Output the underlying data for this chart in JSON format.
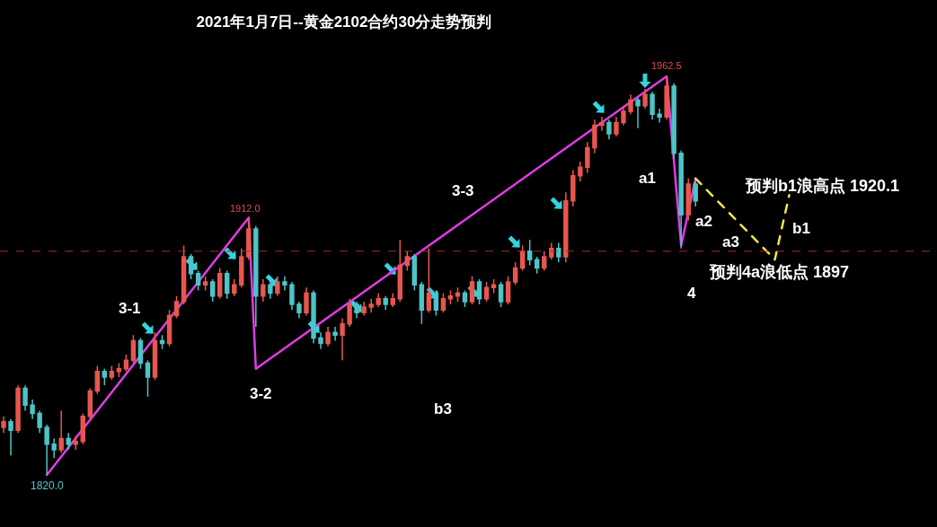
{
  "chart_data": {
    "type": "candlestick",
    "title": "2021年1月7日--黄金2102合约30分走势预判",
    "categories": [
      null,
      null,
      null,
      null,
      null,
      null,
      null,
      null,
      null,
      null,
      null,
      null,
      null,
      null,
      null,
      null,
      null,
      null,
      null,
      null,
      null,
      null,
      null,
      null,
      null,
      null,
      null,
      null,
      null,
      null,
      null,
      null,
      null,
      null,
      null,
      null,
      null,
      null,
      null,
      null,
      null,
      null,
      null,
      null,
      null,
      null,
      null,
      null,
      null,
      null,
      null,
      null,
      null,
      null,
      null,
      null,
      null,
      null,
      null,
      null,
      null,
      null,
      null,
      null,
      null,
      null,
      null,
      null,
      null,
      null,
      null,
      null,
      null,
      null,
      null,
      null,
      null,
      null,
      null,
      null,
      null,
      null,
      null,
      null,
      null,
      null,
      null,
      null,
      null,
      null,
      null,
      null,
      null,
      null,
      null,
      null,
      null,
      null,
      null,
      null,
      null,
      null,
      null,
      null,
      null,
      null,
      null,
      null,
      null,
      null,
      null,
      null,
      null,
      null,
      null,
      null,
      null,
      null,
      null,
      null,
      null,
      null,
      null,
      null,
      null,
      null,
      null,
      null,
      null,
      null
    ],
    "ohlc": [
      [
        1837,
        1841,
        1835,
        1839
      ],
      [
        1839,
        1840,
        1827,
        1836
      ],
      [
        1836,
        1852,
        1835,
        1851
      ],
      [
        1851,
        1852,
        1843,
        1845
      ],
      [
        1845,
        1847,
        1840,
        1842
      ],
      [
        1842,
        1843,
        1835,
        1837
      ],
      [
        1837,
        1838,
        1820.0,
        1831
      ],
      [
        1831,
        1833,
        1826,
        1829
      ],
      [
        1829,
        1843,
        1828,
        1833
      ],
      [
        1833,
        1835,
        1829,
        1831
      ],
      [
        1831,
        1834,
        1829,
        1832
      ],
      [
        1832,
        1842,
        1831,
        1841
      ],
      [
        1841,
        1851,
        1840,
        1850
      ],
      [
        1850,
        1859,
        1849,
        1857
      ],
      [
        1857,
        1858,
        1852,
        1855
      ],
      [
        1855,
        1859,
        1854,
        1857
      ],
      [
        1857,
        1860,
        1855,
        1858
      ],
      [
        1858,
        1863,
        1857,
        1861
      ],
      [
        1861,
        1870,
        1860,
        1868
      ],
      [
        1868,
        1869,
        1858,
        1860
      ],
      [
        1860,
        1861,
        1848,
        1855
      ],
      [
        1855,
        1871,
        1854,
        1868
      ],
      [
        1868,
        1870,
        1865,
        1867
      ],
      [
        1867,
        1879,
        1866,
        1877
      ],
      [
        1877,
        1884,
        1876,
        1882
      ],
      [
        1882,
        1902,
        1881,
        1898
      ],
      [
        1898,
        1899,
        1890,
        1892
      ],
      [
        1892,
        1893,
        1886,
        1888
      ],
      [
        1888,
        1891,
        1886,
        1889
      ],
      [
        1889,
        1890,
        1882,
        1884
      ],
      [
        1884,
        1894,
        1883,
        1892
      ],
      [
        1892,
        1893,
        1883,
        1885
      ],
      [
        1885,
        1890,
        1884,
        1888
      ],
      [
        1888,
        1901,
        1887,
        1898
      ],
      [
        1898,
        1912.0,
        1897,
        1908
      ],
      [
        1908,
        1909,
        1873,
        1884
      ],
      [
        1884,
        1890,
        1882,
        1888
      ],
      [
        1888,
        1889,
        1883,
        1885
      ],
      [
        1885,
        1891,
        1884,
        1889
      ],
      [
        1889,
        1891,
        1886,
        1888
      ],
      [
        1888,
        1889,
        1879,
        1881
      ],
      [
        1881,
        1882,
        1876,
        1878
      ],
      [
        1878,
        1887,
        1877,
        1885
      ],
      [
        1885,
        1886,
        1867,
        1869
      ],
      [
        1869,
        1871,
        1865,
        1867
      ],
      [
        1867,
        1873,
        1866,
        1871
      ],
      [
        1871,
        1873,
        1868,
        1870
      ],
      [
        1870,
        1876,
        1861,
        1874
      ],
      [
        1874,
        1883,
        1873,
        1881
      ],
      [
        1881,
        1882,
        1876,
        1878
      ],
      [
        1878,
        1882,
        1877,
        1880
      ],
      [
        1880,
        1883,
        1878,
        1881
      ],
      [
        1881,
        1885,
        1880,
        1883
      ],
      [
        1883,
        1884,
        1879,
        1881
      ],
      [
        1881,
        1885,
        1880,
        1883
      ],
      [
        1883,
        1904,
        1882,
        1895
      ],
      [
        1895,
        1900,
        1893,
        1898
      ],
      [
        1898,
        1899,
        1886,
        1888
      ],
      [
        1888,
        1889,
        1874,
        1879
      ],
      [
        1879,
        1901,
        1878,
        1885
      ],
      [
        1885,
        1886,
        1877,
        1879
      ],
      [
        1879,
        1885,
        1878,
        1883
      ],
      [
        1883,
        1886,
        1881,
        1884
      ],
      [
        1884,
        1887,
        1882,
        1885
      ],
      [
        1885,
        1886,
        1880,
        1882
      ],
      [
        1882,
        1891,
        1881,
        1889
      ],
      [
        1889,
        1890,
        1881,
        1883
      ],
      [
        1883,
        1889,
        1882,
        1887
      ],
      [
        1887,
        1890,
        1885,
        1888
      ],
      [
        1888,
        1889,
        1880,
        1882
      ],
      [
        1882,
        1891,
        1881,
        1889
      ],
      [
        1889,
        1896,
        1888,
        1894
      ],
      [
        1894,
        1902,
        1893,
        1900
      ],
      [
        1900,
        1904,
        1895,
        1897
      ],
      [
        1897,
        1898,
        1892,
        1894
      ],
      [
        1894,
        1900,
        1893,
        1898
      ],
      [
        1898,
        1903,
        1897,
        1901
      ],
      [
        1901,
        1903,
        1896,
        1898
      ],
      [
        1898,
        1921,
        1896,
        1918
      ],
      [
        1918,
        1929,
        1916,
        1927
      ],
      [
        1927,
        1932,
        1925,
        1930
      ],
      [
        1930,
        1939,
        1928,
        1937
      ],
      [
        1937,
        1947,
        1935,
        1945
      ],
      [
        1945,
        1948,
        1943,
        1946
      ],
      [
        1946,
        1947,
        1940,
        1942
      ],
      [
        1942,
        1948,
        1941,
        1946
      ],
      [
        1946,
        1952,
        1945,
        1950
      ],
      [
        1950,
        1956,
        1949,
        1954
      ],
      [
        1954,
        1955,
        1944,
        1952
      ],
      [
        1952,
        1958,
        1951,
        1956
      ],
      [
        1956,
        1957,
        1947,
        1949
      ],
      [
        1949,
        1951,
        1946,
        1948
      ],
      [
        1948,
        1962.5,
        1947,
        1959
      ],
      [
        1959,
        1960,
        1933,
        1935
      ],
      [
        1935,
        1936,
        1901,
        1913
      ],
      [
        1913,
        1926,
        1911,
        1924
      ],
      [
        1924,
        1925,
        1916,
        1918
      ],
      null,
      null,
      null,
      null,
      null,
      null,
      null,
      null,
      null,
      null,
      null,
      null,
      null,
      null,
      null,
      null,
      null,
      null,
      null,
      null,
      null,
      null,
      null,
      null,
      null,
      null,
      null,
      null,
      null,
      null,
      null,
      null,
      null
    ],
    "colors": [
      "#e8574f",
      "#4cc4c8",
      "#e8574f",
      "#4cc4c8",
      "#4cc4c8",
      "#4cc4c8",
      "#4cc4c8",
      "#4cc4c8",
      "#e8574f",
      "#4cc4c8",
      "#e8574f",
      "#e8574f",
      "#e8574f",
      "#e8574f",
      "#4cc4c8",
      "#e8574f",
      "#e8574f",
      "#e8574f",
      "#e8574f",
      "#4cc4c8",
      "#4cc4c8",
      "#e8574f",
      "#4cc4c8",
      "#e8574f",
      "#e8574f",
      "#e8574f",
      "#4cc4c8",
      "#4cc4c8",
      "#e8574f",
      "#4cc4c8",
      "#e8574f",
      "#4cc4c8",
      "#e8574f",
      "#e8574f",
      "#e8574f",
      "#4cc4c8",
      "#e8574f",
      "#4cc4c8",
      "#e8574f",
      "#4cc4c8",
      "#4cc4c8",
      "#4cc4c8",
      "#e8574f",
      "#4cc4c8",
      "#4cc4c8",
      "#e8574f",
      "#4cc4c8",
      "#e8574f",
      "#e8574f",
      "#4cc4c8",
      "#e8574f",
      "#e8574f",
      "#e8574f",
      "#4cc4c8",
      "#e8574f",
      "#e8574f",
      "#e8574f",
      "#4cc4c8",
      "#4cc4c8",
      "#e8574f",
      "#4cc4c8",
      "#e8574f",
      "#e8574f",
      "#e8574f",
      "#4cc4c8",
      "#e8574f",
      "#4cc4c8",
      "#e8574f",
      "#e8574f",
      "#4cc4c8",
      "#e8574f",
      "#e8574f",
      "#e8574f",
      "#4cc4c8",
      "#4cc4c8",
      "#e8574f",
      "#e8574f",
      "#4cc4c8",
      "#e8574f",
      "#e8574f",
      "#e8574f",
      "#e8574f",
      "#e8574f",
      "#e8574f",
      "#4cc4c8",
      "#e8574f",
      "#e8574f",
      "#e8574f",
      "#4cc4c8",
      "#e8574f",
      "#4cc4c8",
      "#4cc4c8",
      "#e8574f",
      "#4cc4c8",
      "#4cc4c8",
      "#e8574f",
      "#4cc4c8",
      null,
      null,
      null,
      null,
      null,
      null,
      null,
      null,
      null,
      null,
      null,
      null,
      null,
      null,
      null,
      null,
      null,
      null,
      null,
      null,
      null,
      null,
      null,
      null,
      null,
      null,
      null,
      null,
      null,
      null,
      null,
      null,
      null
    ],
    "series": [
      {
        "type": "line",
        "color": "#e03ce6",
        "values": [
          null,
          null,
          null,
          null,
          null,
          null,
          1820.0,
          null,
          null,
          null,
          null,
          null,
          null,
          null,
          null,
          null,
          null,
          null,
          null,
          null,
          null,
          null,
          null,
          null,
          null,
          null,
          null,
          null,
          null,
          null,
          null,
          null,
          null,
          null,
          1912.0,
          1858,
          null,
          null,
          null,
          null,
          null,
          null,
          null,
          null,
          null,
          null,
          null,
          null,
          null,
          null,
          null,
          null,
          null,
          null,
          null,
          null,
          null,
          null,
          null,
          null,
          null,
          null,
          null,
          null,
          null,
          null,
          null,
          null,
          null,
          null,
          null,
          null,
          null,
          null,
          null,
          null,
          null,
          null,
          null,
          null,
          null,
          null,
          null,
          null,
          null,
          null,
          null,
          null,
          null,
          null,
          null,
          null,
          1962.5,
          null,
          1902,
          null,
          1926,
          null,
          null,
          null,
          null,
          null,
          null,
          null,
          null,
          null,
          null,
          null,
          null,
          null,
          null,
          null,
          null,
          null,
          null,
          null,
          null,
          null,
          null,
          null,
          null,
          null,
          null,
          null,
          null,
          null,
          null,
          null,
          null,
          null
        ]
      },
      {
        "type": "line",
        "color": "#f2e64a",
        "line_style": "dashed",
        "values": [
          null,
          null,
          null,
          null,
          null,
          null,
          null,
          null,
          null,
          null,
          null,
          null,
          null,
          null,
          null,
          null,
          null,
          null,
          null,
          null,
          null,
          null,
          null,
          null,
          null,
          null,
          null,
          null,
          null,
          null,
          null,
          null,
          null,
          null,
          null,
          null,
          null,
          null,
          null,
          null,
          null,
          null,
          null,
          null,
          null,
          null,
          null,
          null,
          null,
          null,
          null,
          null,
          null,
          null,
          null,
          null,
          null,
          null,
          null,
          null,
          null,
          null,
          null,
          null,
          null,
          null,
          null,
          null,
          null,
          null,
          null,
          null,
          null,
          null,
          null,
          null,
          null,
          null,
          null,
          null,
          null,
          null,
          null,
          null,
          null,
          null,
          null,
          null,
          null,
          null,
          null,
          null,
          null,
          null,
          null,
          null,
          1926,
          null,
          null,
          null,
          null,
          null,
          null,
          null,
          null,
          null,
          null,
          1897,
          null,
          1920.1,
          null,
          null,
          null,
          null,
          null,
          null,
          null,
          null,
          null,
          null,
          null,
          null,
          null,
          null,
          null,
          null,
          null,
          null,
          null,
          null
        ]
      }
    ],
    "ref_lines": [
      {
        "axis": "y",
        "value": 1900,
        "color": "#a82a2a",
        "line_style": "dashed"
      }
    ],
    "annotations": [
      {
        "text": "1962.5",
        "y": 1962.5
      },
      {
        "text": "1912.0",
        "y": 1912.0
      },
      {
        "text": "1820.0",
        "y": 1820.0
      },
      "3-1",
      "3-2",
      "3-3",
      "b3",
      "a1",
      "a2",
      "a3",
      "4",
      "b1",
      "预判b1浪高点 1920.1",
      {
        "text": "预判4a浪低点 1897",
        "y": 1897
      }
    ],
    "tick_labels": false
  }
}
